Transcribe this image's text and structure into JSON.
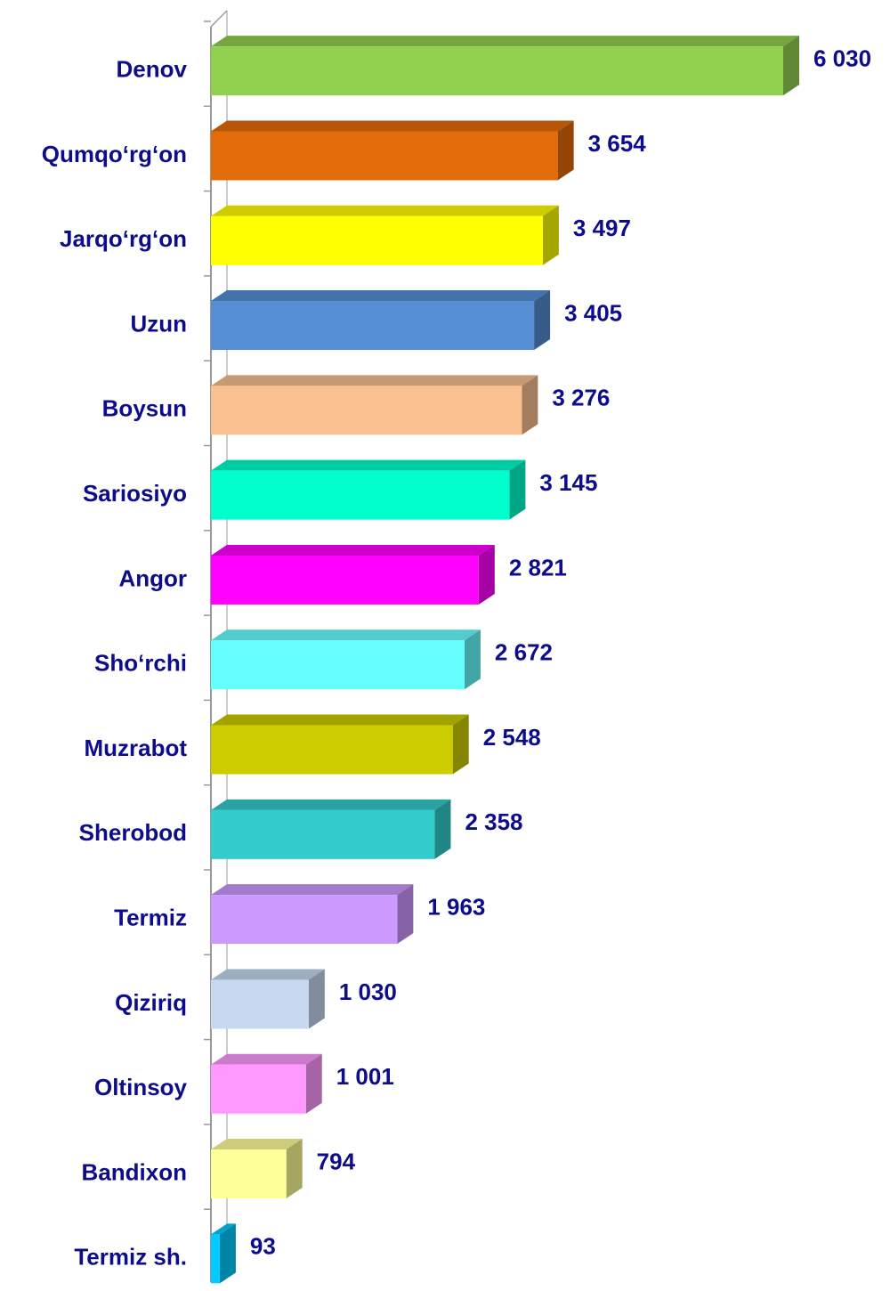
{
  "chart_data": {
    "type": "bar",
    "orientation": "horizontal",
    "categories": [
      "Denov",
      "Qumqo‘rg‘on",
      "Jarqo‘rg‘on",
      "Uzun",
      "Boysun",
      "Sariosiyo",
      "Angor",
      "Sho‘rchi",
      "Muzrabot",
      "Sherobod",
      "Termiz",
      "Qiziriq",
      "Oltinsoy",
      "Bandixon",
      "Termiz sh."
    ],
    "values": [
      6030,
      3654,
      3497,
      3405,
      3276,
      3145,
      2821,
      2672,
      2548,
      2358,
      1963,
      1030,
      1001,
      794,
      93
    ],
    "value_labels": [
      "6 030",
      "3 654",
      "3 497",
      "3 405",
      "3 276",
      "3 145",
      "2 821",
      "2 672",
      "2 548",
      "2 358",
      "1 963",
      "1 030",
      "1 001",
      "794",
      "93"
    ],
    "colors": [
      "#92d050",
      "#e36c0a",
      "#ffff00",
      "#558ed5",
      "#fac090",
      "#00ffcc",
      "#ff00ff",
      "#66ffff",
      "#cccc00",
      "#33cccc",
      "#cc99ff",
      "#c6d9f1",
      "#ff99ff",
      "#ffff99",
      "#00ccff"
    ]
  }
}
